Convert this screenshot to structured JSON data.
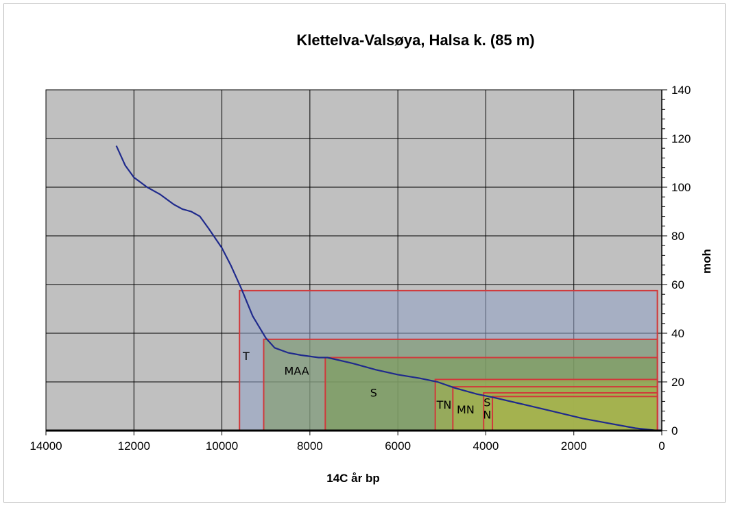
{
  "chart_data": {
    "type": "line",
    "title": "Klettelva-Valsøya,  Halsa k. (85 m)",
    "xlabel": "14C år bp",
    "ylabel": "moh",
    "xlim": [
      14000,
      0
    ],
    "ylim": [
      0,
      140
    ],
    "x_reversed": true,
    "x_ticks": [
      14000,
      12000,
      10000,
      8000,
      6000,
      4000,
      2000,
      0
    ],
    "y_ticks": [
      0,
      20,
      40,
      60,
      80,
      100,
      120,
      140
    ],
    "grid": true,
    "legend": "none",
    "series": [
      {
        "color": "#1f2a8c",
        "points": [
          [
            12400,
            117
          ],
          [
            12200,
            109
          ],
          [
            12000,
            104
          ],
          [
            11700,
            100
          ],
          [
            11400,
            97
          ],
          [
            11100,
            93
          ],
          [
            10900,
            91
          ],
          [
            10700,
            90
          ],
          [
            10500,
            88
          ],
          [
            10300,
            83
          ],
          [
            10000,
            75
          ],
          [
            9800,
            68
          ],
          [
            9550,
            58
          ],
          [
            9300,
            47
          ],
          [
            9000,
            38
          ],
          [
            8800,
            34
          ],
          [
            8500,
            32
          ],
          [
            8200,
            31
          ],
          [
            7800,
            30
          ],
          [
            7600,
            30
          ],
          [
            7000,
            27.5
          ],
          [
            6500,
            25
          ],
          [
            6000,
            23
          ],
          [
            5500,
            21.5
          ],
          [
            5100,
            20
          ],
          [
            4700,
            17.5
          ],
          [
            4200,
            15
          ],
          [
            3800,
            13.5
          ],
          [
            3200,
            11
          ],
          [
            2500,
            8
          ],
          [
            1800,
            5
          ],
          [
            1200,
            3
          ],
          [
            600,
            1
          ],
          [
            100,
            0
          ]
        ]
      }
    ],
    "zones": [
      {
        "x_start": 9600,
        "x_end": 100,
        "y_top": 57.5,
        "label": "T",
        "fill": "#8fa0c4"
      },
      {
        "x_start": 9050,
        "x_end": 100,
        "y_top": 37.5,
        "label": "MAA",
        "fill": "#7d9a5e"
      },
      {
        "x_start": 7650,
        "x_end": 100,
        "y_top": 30,
        "label": "S",
        "fill": "#7a9d55"
      },
      {
        "x_start": 5150,
        "x_end": 100,
        "y_top": 21,
        "label": "TN",
        "fill": "#a5b34e"
      },
      {
        "x_start": 4750,
        "x_end": 100,
        "y_top": 18,
        "label": "MN",
        "fill": "#a5b34e"
      },
      {
        "x_start": 4050,
        "x_end": 100,
        "y_top": 15.5,
        "label": "S",
        "fill": "#a5b34e"
      },
      {
        "x_start": 3850,
        "x_end": 100,
        "y_top": 14,
        "label": "N",
        "fill": "#a5b34e"
      }
    ],
    "zone_labels": [
      {
        "text": "T",
        "x": 9450,
        "y": 29
      },
      {
        "text": "MAA",
        "x": 8300,
        "y": 23
      },
      {
        "text": "S",
        "x": 6550,
        "y": 14
      },
      {
        "text": "TN",
        "x": 4950,
        "y": 9
      },
      {
        "text": "MN",
        "x": 4460,
        "y": 7
      },
      {
        "text": "S",
        "x": 3970,
        "y": 10
      },
      {
        "text": "N",
        "x": 3970,
        "y": 5
      }
    ],
    "colors": {
      "plot_background": "#c0c0c0",
      "grid": "#000000",
      "zone_border": "#d0393b",
      "line": "#1f2a8c"
    }
  }
}
